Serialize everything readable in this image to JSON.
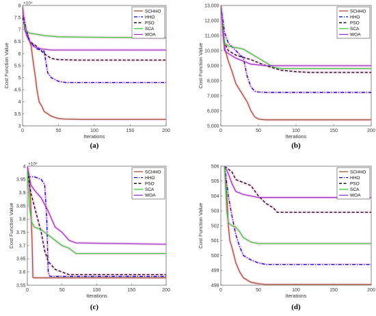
{
  "figure": {
    "colors": {
      "SCHHO": "#a0522d",
      "HHO": "#0000cc",
      "PSO": "#000000",
      "SCA": "#33cc33",
      "WOA": "#9933cc",
      "band": "#f2c6e6"
    },
    "dash": {
      "SCHHO": "solid",
      "HHO": "dashdot",
      "PSO": "dashed",
      "SCA": "solid",
      "WOA": "solid"
    }
  },
  "chart_data": [
    {
      "type": "line",
      "panel_label": "(a)",
      "xlabel": "Iterations",
      "ylabel": "Cost Function Value",
      "exponent_label": "×10⁴",
      "xlim": [
        0,
        200
      ],
      "ylim": [
        3,
        8
      ],
      "xticks": [
        "0",
        "50",
        "100",
        "150",
        "200"
      ],
      "yticks": [
        "3",
        "3.5",
        "4",
        "4.5",
        "5",
        "5.5",
        "6",
        "6.5",
        "7",
        "7.5",
        "8"
      ],
      "legend": [
        "SCHHO",
        "HHO",
        "PSO",
        "SCA",
        "WOA"
      ],
      "series": [
        {
          "name": "SCHHO",
          "x": [
            0,
            3,
            6,
            9,
            12,
            15,
            18,
            20,
            23,
            27,
            30,
            40,
            50,
            60,
            80,
            200
          ],
          "y": [
            7.6,
            7.2,
            6.9,
            6.6,
            6.3,
            5.6,
            5.0,
            4.5,
            4.0,
            3.8,
            3.6,
            3.4,
            3.3,
            3.28,
            3.27,
            3.27
          ]
        },
        {
          "name": "HHO",
          "x": [
            0,
            5,
            10,
            20,
            30,
            35,
            40,
            50,
            60,
            80,
            200
          ],
          "y": [
            7.8,
            7.0,
            6.5,
            6.2,
            6.1,
            5.2,
            5.0,
            4.85,
            4.8,
            4.8,
            4.8
          ]
        },
        {
          "name": "PSO",
          "x": [
            0,
            5,
            10,
            15,
            20,
            30,
            40,
            50,
            80,
            200
          ],
          "y": [
            7.5,
            6.8,
            6.5,
            6.4,
            6.3,
            6.0,
            5.8,
            5.75,
            5.73,
            5.73
          ]
        },
        {
          "name": "SCA",
          "x": [
            0,
            2,
            5,
            10,
            20,
            30,
            50,
            100,
            200
          ],
          "y": [
            7.9,
            7.3,
            6.95,
            6.85,
            6.8,
            6.75,
            6.7,
            6.68,
            6.66
          ]
        },
        {
          "name": "WOA",
          "x": [
            0,
            3,
            8,
            15,
            25,
            40,
            50,
            200
          ],
          "y": [
            8.0,
            7.0,
            6.6,
            6.3,
            6.2,
            6.15,
            6.15,
            6.15
          ]
        }
      ]
    },
    {
      "type": "line",
      "panel_label": "(b)",
      "xlabel": "Iterations",
      "ylabel": "Cost Function Value",
      "exponent_label": "",
      "xlim": [
        0,
        200
      ],
      "ylim": [
        5000,
        13000
      ],
      "xticks": [
        "0",
        "50",
        "100",
        "150",
        "200"
      ],
      "yticks": [
        "5,000",
        "6,000",
        "7,000",
        "8,000",
        "9,000",
        "10,000",
        "11,000",
        "12,000",
        "13,000"
      ],
      "legend": [
        "SCHHO",
        "HHO",
        "PSO",
        "SCA",
        "WOA"
      ],
      "series": [
        {
          "name": "SCHHO",
          "x": [
            0,
            3,
            6,
            10,
            15,
            20,
            30,
            35,
            40,
            45,
            50,
            60,
            200
          ],
          "y": [
            13000,
            11000,
            10000,
            9300,
            8600,
            7800,
            7000,
            6600,
            6000,
            5600,
            5450,
            5400,
            5400
          ]
        },
        {
          "name": "HHO",
          "x": [
            0,
            5,
            10,
            20,
            30,
            35,
            40,
            45,
            50,
            60,
            200
          ],
          "y": [
            13000,
            11200,
            10500,
            10000,
            9500,
            8300,
            7600,
            7300,
            7250,
            7220,
            7220
          ]
        },
        {
          "name": "PSO",
          "x": [
            0,
            5,
            10,
            20,
            40,
            60,
            80,
            100,
            120,
            200
          ],
          "y": [
            13000,
            10500,
            10000,
            9700,
            9400,
            9000,
            8700,
            8600,
            8550,
            8550
          ]
        },
        {
          "name": "SCA",
          "x": [
            0,
            5,
            10,
            20,
            30,
            40,
            50,
            60,
            70,
            80,
            200
          ],
          "y": [
            13000,
            10500,
            10300,
            10200,
            10100,
            9800,
            9500,
            9200,
            8900,
            8800,
            8800
          ]
        },
        {
          "name": "WOA",
          "x": [
            0,
            5,
            10,
            20,
            30,
            40,
            50,
            60,
            200
          ],
          "y": [
            13000,
            10000,
            9800,
            9500,
            9300,
            9100,
            9050,
            9000,
            9000
          ]
        }
      ]
    },
    {
      "type": "line",
      "panel_label": "(c)",
      "xlabel": "Iterations",
      "ylabel": "Cost Function Value",
      "exponent_label": "×10⁸",
      "xlim": [
        0,
        200
      ],
      "ylim": [
        3.55,
        4.0
      ],
      "xticks": [
        "0",
        "50",
        "100",
        "150",
        "200"
      ],
      "yticks": [
        "3.55",
        "3.6",
        "3.65",
        "3.7",
        "3.75",
        "3.8",
        "3.85",
        "3.9",
        "3.95",
        "4"
      ],
      "legend": [
        "SCHHO",
        "HHO",
        "PSO",
        "SCA",
        "WOA"
      ],
      "series": [
        {
          "name": "SCHHO",
          "x": [
            0,
            3,
            5,
            7,
            8,
            10,
            200
          ],
          "y": [
            4.0,
            3.95,
            3.85,
            3.7,
            3.58,
            3.578,
            3.578
          ]
        },
        {
          "name": "HHO",
          "x": [
            0,
            5,
            10,
            20,
            25,
            28,
            30,
            32,
            35,
            200
          ],
          "y": [
            3.96,
            3.96,
            3.96,
            3.95,
            3.93,
            3.8,
            3.6,
            3.585,
            3.583,
            3.583
          ]
        },
        {
          "name": "PSO",
          "x": [
            0,
            5,
            10,
            15,
            20,
            25,
            30,
            40,
            50,
            60,
            200
          ],
          "y": [
            3.98,
            3.9,
            3.85,
            3.8,
            3.75,
            3.68,
            3.64,
            3.61,
            3.6,
            3.59,
            3.59
          ]
        },
        {
          "name": "SCA",
          "x": [
            0,
            3,
            6,
            10,
            20,
            30,
            40,
            50,
            60,
            70,
            200
          ],
          "y": [
            3.98,
            3.85,
            3.79,
            3.77,
            3.76,
            3.74,
            3.72,
            3.7,
            3.69,
            3.67,
            3.67
          ]
        },
        {
          "name": "WOA",
          "x": [
            0,
            5,
            10,
            20,
            30,
            35,
            40,
            50,
            60,
            70,
            200
          ],
          "y": [
            4.0,
            3.93,
            3.91,
            3.88,
            3.83,
            3.8,
            3.77,
            3.75,
            3.72,
            3.71,
            3.705
          ]
        }
      ]
    },
    {
      "type": "line",
      "panel_label": "(d)",
      "xlabel": "Iterations",
      "ylabel": "Cost Function Value",
      "exponent_label": "",
      "xlim": [
        0,
        200
      ],
      "ylim": [
        498,
        506
      ],
      "xticks": [
        "0",
        "50",
        "100",
        "150",
        "200"
      ],
      "yticks": [
        "498",
        "499",
        "500",
        "501",
        "502",
        "503",
        "504",
        "505",
        "506"
      ],
      "legend": [
        "SCHHO",
        "HHO",
        "PSO",
        "SCA",
        "WOA"
      ],
      "series": [
        {
          "name": "SCHHO",
          "x": [
            5,
            8,
            10,
            12,
            15,
            20,
            25,
            30,
            40,
            50,
            60,
            200
          ],
          "y": [
            506,
            504,
            502,
            501,
            500.5,
            499.5,
            498.9,
            498.5,
            498.2,
            498.1,
            498.05,
            498.05
          ]
        },
        {
          "name": "HHO",
          "x": [
            5,
            10,
            15,
            20,
            25,
            30,
            40,
            50,
            60,
            200
          ],
          "y": [
            506,
            504,
            502.6,
            501.4,
            500.6,
            500.0,
            499.7,
            499.5,
            499.4,
            499.4
          ]
        },
        {
          "name": "PSO",
          "x": [
            5,
            15,
            20,
            30,
            40,
            50,
            60,
            70,
            75,
            200
          ],
          "y": [
            506,
            505.6,
            505.1,
            504.9,
            504.7,
            504.0,
            503.5,
            503.2,
            502.9,
            502.9
          ]
        },
        {
          "name": "SCA",
          "x": [
            5,
            8,
            10,
            15,
            20,
            25,
            30,
            40,
            50,
            60,
            200
          ],
          "y": [
            506,
            503,
            502.2,
            502.0,
            501.9,
            501.6,
            501.2,
            500.9,
            500.8,
            500.8,
            500.8
          ]
        },
        {
          "name": "WOA",
          "x": [
            5,
            10,
            15,
            20,
            30,
            50,
            200
          ],
          "y": [
            506,
            505.5,
            504.8,
            504.3,
            504.1,
            503.9,
            503.9
          ]
        }
      ]
    }
  ]
}
